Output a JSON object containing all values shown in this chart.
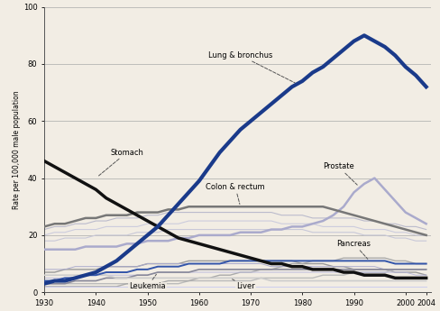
{
  "years": [
    1930,
    1932,
    1934,
    1936,
    1938,
    1940,
    1942,
    1944,
    1946,
    1948,
    1950,
    1952,
    1954,
    1956,
    1958,
    1960,
    1962,
    1964,
    1966,
    1968,
    1970,
    1972,
    1974,
    1976,
    1978,
    1980,
    1982,
    1984,
    1986,
    1988,
    1990,
    1992,
    1994,
    1996,
    1998,
    2000,
    2002,
    2004
  ],
  "lung_bronchus": [
    3,
    4,
    4,
    5,
    6,
    7,
    9,
    11,
    14,
    17,
    20,
    23,
    27,
    31,
    35,
    39,
    44,
    49,
    53,
    57,
    60,
    63,
    66,
    69,
    72,
    74,
    77,
    79,
    82,
    85,
    88,
    90,
    88,
    86,
    83,
    79,
    76,
    72
  ],
  "stomach": [
    46,
    44,
    42,
    40,
    38,
    36,
    33,
    31,
    29,
    27,
    25,
    23,
    21,
    19,
    18,
    17,
    16,
    15,
    14,
    13,
    12,
    11,
    10,
    10,
    9,
    9,
    8,
    8,
    8,
    7,
    7,
    6,
    6,
    6,
    5,
    5,
    5,
    5
  ],
  "colon_rectum": [
    23,
    24,
    24,
    25,
    26,
    26,
    27,
    27,
    27,
    28,
    28,
    28,
    29,
    29,
    30,
    30,
    30,
    30,
    30,
    30,
    30,
    30,
    30,
    30,
    30,
    30,
    30,
    30,
    29,
    28,
    27,
    26,
    25,
    24,
    23,
    22,
    21,
    20
  ],
  "prostate": [
    15,
    15,
    15,
    15,
    16,
    16,
    16,
    16,
    17,
    17,
    18,
    18,
    18,
    19,
    19,
    20,
    20,
    20,
    20,
    21,
    21,
    21,
    22,
    22,
    23,
    23,
    24,
    25,
    27,
    30,
    35,
    38,
    40,
    36,
    32,
    28,
    26,
    24
  ],
  "pancreas": [
    4,
    4,
    5,
    5,
    6,
    6,
    7,
    7,
    7,
    8,
    8,
    9,
    9,
    9,
    10,
    10,
    10,
    10,
    11,
    11,
    11,
    11,
    11,
    11,
    11,
    11,
    11,
    11,
    11,
    11,
    11,
    11,
    11,
    11,
    10,
    10,
    10,
    10
  ],
  "leukemia": [
    3,
    3,
    3,
    4,
    4,
    4,
    5,
    5,
    5,
    6,
    6,
    7,
    7,
    7,
    7,
    8,
    8,
    8,
    8,
    8,
    8,
    8,
    8,
    8,
    8,
    8,
    8,
    8,
    8,
    8,
    8,
    8,
    8,
    8,
    8,
    8,
    8,
    8
  ],
  "liver": [
    6,
    6,
    6,
    6,
    6,
    6,
    6,
    5,
    5,
    5,
    5,
    5,
    5,
    5,
    5,
    5,
    5,
    5,
    5,
    5,
    5,
    5,
    4,
    4,
    4,
    4,
    4,
    4,
    4,
    4,
    4,
    4,
    4,
    4,
    4,
    4,
    4,
    4
  ],
  "esophagus": [
    3,
    3,
    3,
    3,
    3,
    3,
    3,
    3,
    3,
    3,
    3,
    3,
    3,
    3,
    4,
    4,
    4,
    4,
    4,
    4,
    4,
    5,
    5,
    5,
    5,
    5,
    5,
    6,
    6,
    6,
    7,
    7,
    7,
    7,
    8,
    8,
    8,
    8
  ],
  "bladder": [
    7,
    7,
    8,
    8,
    8,
    8,
    9,
    9,
    9,
    9,
    10,
    10,
    10,
    10,
    11,
    11,
    11,
    11,
    11,
    11,
    11,
    11,
    11,
    11,
    11,
    10,
    10,
    10,
    9,
    9,
    8,
    8,
    8,
    8,
    7,
    7,
    7,
    6
  ],
  "non_hodgkin": [
    2,
    2,
    2,
    2,
    2,
    2,
    2,
    2,
    3,
    3,
    3,
    3,
    4,
    4,
    4,
    5,
    5,
    6,
    6,
    7,
    7,
    8,
    8,
    9,
    10,
    10,
    11,
    11,
    11,
    12,
    12,
    12,
    12,
    12,
    11,
    11,
    10,
    10
  ],
  "lung_color": "#1a3a8a",
  "stomach_color": "#111111",
  "colon_color": "#777777",
  "prostate_color": "#aaaacc",
  "pancreas_color": "#3355aa",
  "leukemia_color": "#888899",
  "liver_color": "#cccccc",
  "esophagus_color": "#bbbbbb",
  "bladder_color": "#999999",
  "nonhodg_color": "#aaaaaa",
  "bg_color": "#f2ede4",
  "ylim": [
    0,
    100
  ],
  "xlim": [
    1930,
    2005
  ],
  "yticks": [
    0,
    20,
    40,
    60,
    80,
    100
  ],
  "xticks": [
    1930,
    1940,
    1950,
    1960,
    1970,
    1980,
    1990,
    2000
  ],
  "extra_xtick": 2004,
  "ylabel": "Rate per 100,000 male population"
}
